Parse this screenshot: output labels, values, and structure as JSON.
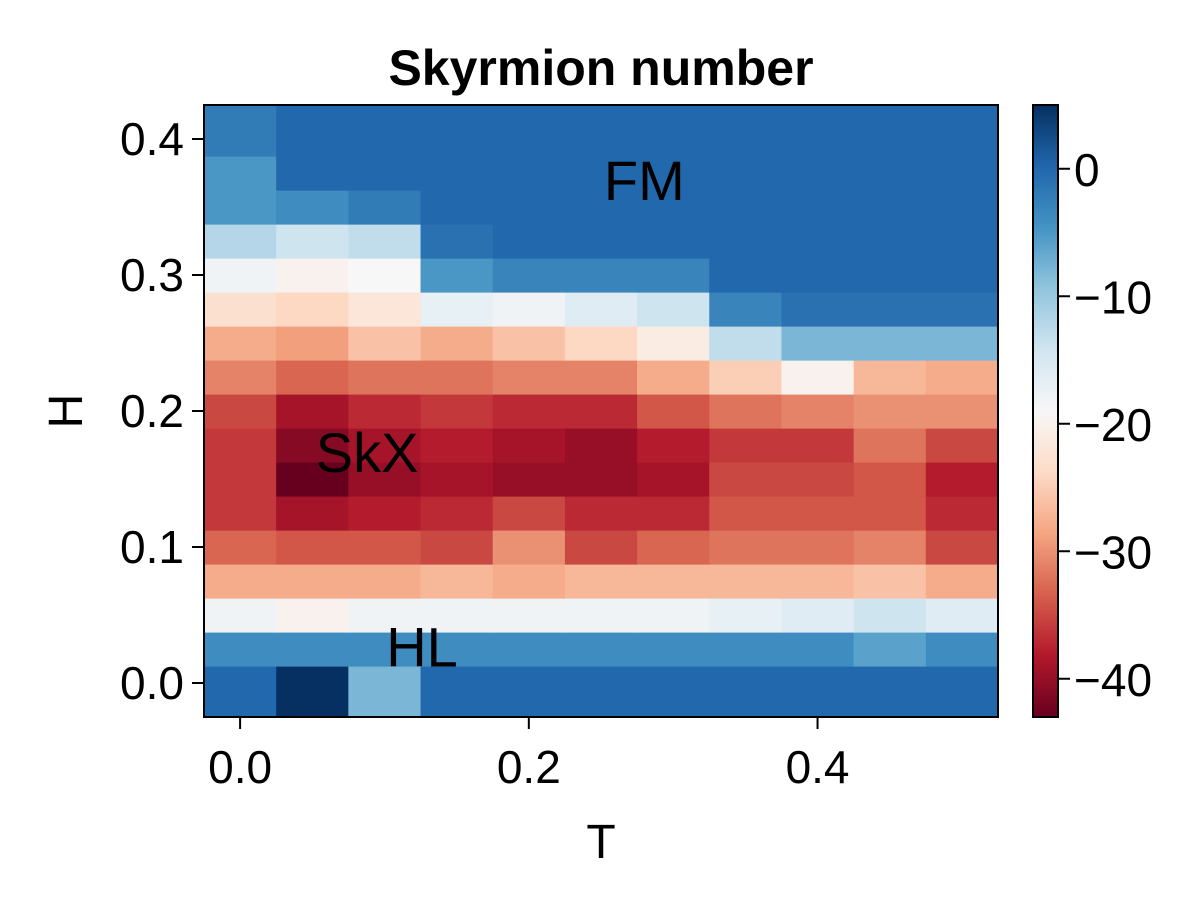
{
  "chart_data": {
    "type": "heatmap",
    "title": "Skyrmion number",
    "xlabel": "T",
    "ylabel": "H",
    "xlim": [
      -0.025,
      0.525
    ],
    "ylim": [
      -0.025,
      0.425
    ],
    "x_ticks": [
      0.0,
      0.2,
      0.4
    ],
    "x_tick_labels": [
      "0.0",
      "0.2",
      "0.4"
    ],
    "y_ticks": [
      0.0,
      0.1,
      0.2,
      0.3,
      0.4
    ],
    "y_tick_labels": [
      "0.0",
      "0.1",
      "0.2",
      "0.3",
      "0.4"
    ],
    "colorbar": {
      "colormap": "RdBu",
      "range": [
        -43,
        5
      ],
      "ticks": [
        0,
        -10,
        -20,
        -30,
        -40
      ],
      "tick_labels": [
        "0",
        "−10",
        "−20",
        "−30",
        "−40"
      ]
    },
    "x": [
      0.0,
      0.05,
      0.1,
      0.15,
      0.2,
      0.25,
      0.3,
      0.35,
      0.4,
      0.45,
      0.5
    ],
    "y": [
      0.0,
      0.025,
      0.05,
      0.075,
      0.1,
      0.125,
      0.15,
      0.175,
      0.2,
      0.225,
      0.25,
      0.275,
      0.3,
      0.325,
      0.35,
      0.375,
      0.4
    ],
    "z": [
      [
        0,
        5,
        -8,
        0,
        0,
        0,
        0,
        0,
        0,
        0,
        0
      ],
      [
        -4,
        -4,
        -4,
        -4,
        -4,
        -4,
        -4,
        -4,
        -4,
        -6,
        -4
      ],
      [
        -18,
        -20,
        -18,
        -18,
        -18,
        -18,
        -18,
        -17,
        -16,
        -14,
        -16
      ],
      [
        -28,
        -28,
        -28,
        -27,
        -28,
        -27,
        -27,
        -27,
        -27,
        -26,
        -28
      ],
      [
        -33,
        -34,
        -34,
        -35,
        -30,
        -35,
        -33,
        -32,
        -32,
        -31,
        -35
      ],
      [
        -36,
        -39,
        -38,
        -37,
        -35,
        -37,
        -37,
        -34,
        -34,
        -34,
        -37
      ],
      [
        -36,
        -43,
        -40,
        -39,
        -40,
        -40,
        -39,
        -35,
        -35,
        -34,
        -38
      ],
      [
        -36,
        -41,
        -39,
        -38,
        -39,
        -40,
        -38,
        -36,
        -36,
        -32,
        -35
      ],
      [
        -35,
        -39,
        -37,
        -36,
        -37,
        -37,
        -34,
        -32,
        -31,
        -30,
        -30
      ],
      [
        -31,
        -33,
        -32,
        -32,
        -31,
        -31,
        -28,
        -25,
        -20,
        -27,
        -28
      ],
      [
        -28,
        -29,
        -26,
        -28,
        -26,
        -24,
        -21,
        -13,
        -8,
        -8,
        -8
      ],
      [
        -23,
        -24,
        -22,
        -17,
        -18,
        -16,
        -14,
        -3,
        -1,
        -1,
        -1
      ],
      [
        -18,
        -20,
        -19,
        -5,
        -3,
        -3,
        -3,
        0,
        0,
        0,
        0
      ],
      [
        -12,
        -14,
        -13,
        -1,
        0,
        0,
        0,
        0,
        0,
        0,
        0
      ],
      [
        -5,
        -4,
        -2,
        0,
        0,
        0,
        0,
        0,
        0,
        0,
        0
      ],
      [
        -5,
        0,
        0,
        0,
        0,
        0,
        0,
        0,
        0,
        0,
        0
      ],
      [
        -2,
        0,
        0,
        0,
        0,
        0,
        0,
        0,
        0,
        0,
        0
      ]
    ],
    "annotations": [
      {
        "text": "FM",
        "x": 0.28,
        "y": 0.37
      },
      {
        "text": "SkX",
        "x": 0.088,
        "y": 0.17
      },
      {
        "text": "HL",
        "x": 0.126,
        "y": 0.027
      }
    ]
  }
}
